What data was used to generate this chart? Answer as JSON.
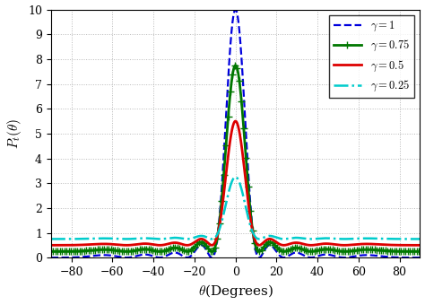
{
  "title": "",
  "xlabel": "$\\theta$(Degrees)",
  "ylabel": "$P_t(\\theta)$",
  "xlim": [
    -90,
    90
  ],
  "ylim": [
    0,
    10
  ],
  "yticks": [
    0,
    1,
    2,
    3,
    4,
    5,
    6,
    7,
    8,
    9,
    10
  ],
  "xticks": [
    -80,
    -60,
    -40,
    -20,
    0,
    20,
    40,
    60,
    80
  ],
  "background_color": "#ffffff",
  "grid_color": "#b0b0b0",
  "N": 10,
  "d_over_lambda": 0.5,
  "theta0_deg": 0.0,
  "curves": [
    {
      "gamma": 1.0,
      "color": "#0000dd",
      "linestyle": "--",
      "linewidth": 1.6,
      "marker": null,
      "label": "$\\gamma = 1$"
    },
    {
      "gamma": 0.75,
      "color": "#007700",
      "linestyle": "-",
      "linewidth": 2.0,
      "marker": "+",
      "markersize": 6,
      "markevery": 12,
      "label": "$\\gamma = 0.75$"
    },
    {
      "gamma": 0.5,
      "color": "#dd0000",
      "linestyle": "-",
      "linewidth": 2.0,
      "marker": null,
      "label": "$\\gamma = 0.5$"
    },
    {
      "gamma": 0.25,
      "color": "#00cccc",
      "linestyle": "-.",
      "linewidth": 1.8,
      "marker": null,
      "label": "$\\gamma = 0.25$"
    }
  ],
  "legend_loc": "upper right",
  "legend_fontsize": 9,
  "tick_fontsize": 9,
  "label_fontsize": 11
}
